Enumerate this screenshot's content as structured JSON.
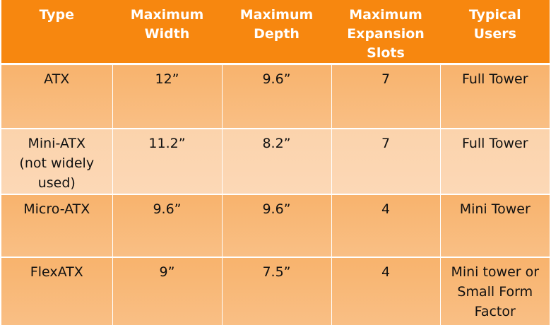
{
  "table": {
    "headers": [
      "Type",
      "Maximum\nWidth",
      "Maximum\nDepth",
      "Maximum\nExpansion\nSlots",
      "Typical\nUsers"
    ],
    "rows": [
      [
        "ATX",
        "12”",
        "9.6”",
        "7",
        "Full Tower"
      ],
      [
        "Mini-ATX\n(not widely\nused)",
        "11.2”",
        "8.2”",
        "7",
        "Full Tower"
      ],
      [
        "Micro-ATX",
        "9.6”",
        "9.6”",
        "4",
        "Mini Tower"
      ],
      [
        "FlexATX",
        "9”",
        "7.5”",
        "4",
        "Mini tower or\nSmall Form\nFactor"
      ]
    ]
  },
  "colors": {
    "header_bg": "#f7870f",
    "row_dark": "#f8b36d",
    "row_light": "#fbd3ac"
  }
}
